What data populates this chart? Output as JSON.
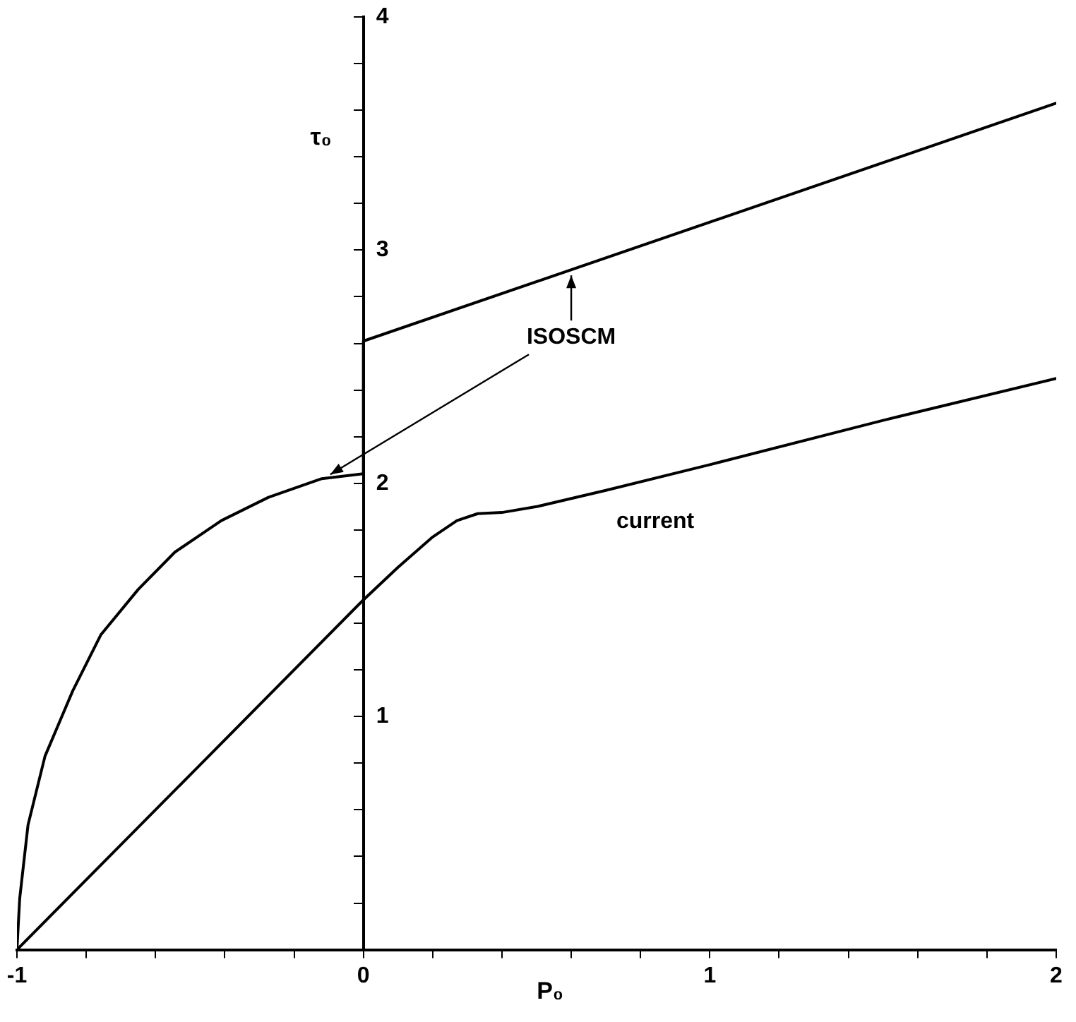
{
  "chart_data": {
    "type": "line",
    "xlabel": "P₀",
    "ylabel": "τ₀",
    "xlim": [
      -1,
      2
    ],
    "ylim": [
      0,
      4
    ],
    "xticks": [
      {
        "value": -1,
        "label": "-1"
      },
      {
        "value": -0.8,
        "label": null
      },
      {
        "value": -0.6,
        "label": null
      },
      {
        "value": -0.4,
        "label": null
      },
      {
        "value": -0.2,
        "label": null
      },
      {
        "value": 0,
        "label": "0"
      },
      {
        "value": 0.2,
        "label": null
      },
      {
        "value": 0.4,
        "label": null
      },
      {
        "value": 0.6,
        "label": null
      },
      {
        "value": 0.8,
        "label": null
      },
      {
        "value": 1,
        "label": "1"
      },
      {
        "value": 1.2,
        "label": null
      },
      {
        "value": 1.4,
        "label": null
      },
      {
        "value": 1.6,
        "label": null
      },
      {
        "value": 1.8,
        "label": null
      },
      {
        "value": 2,
        "label": "2"
      }
    ],
    "yticks": [
      {
        "value": 0,
        "label": null
      },
      {
        "value": 0.2,
        "label": null
      },
      {
        "value": 0.4,
        "label": null
      },
      {
        "value": 0.6,
        "label": null
      },
      {
        "value": 0.8,
        "label": null
      },
      {
        "value": 1,
        "label": "1"
      },
      {
        "value": 1.2,
        "label": null
      },
      {
        "value": 1.4,
        "label": null
      },
      {
        "value": 1.6,
        "label": null
      },
      {
        "value": 1.8,
        "label": null
      },
      {
        "value": 2,
        "label": "2"
      },
      {
        "value": 2.2,
        "label": null
      },
      {
        "value": 2.4,
        "label": null
      },
      {
        "value": 2.6,
        "label": null
      },
      {
        "value": 2.8,
        "label": null
      },
      {
        "value": 3,
        "label": "3"
      },
      {
        "value": 3.2,
        "label": null
      },
      {
        "value": 3.4,
        "label": null
      },
      {
        "value": 3.6,
        "label": null
      },
      {
        "value": 3.8,
        "label": null
      },
      {
        "value": 4,
        "label": "4"
      }
    ],
    "series": [
      {
        "name": "ISOSCM",
        "color": "#000000",
        "x": [
          -1,
          -0.992,
          -0.968,
          -0.919,
          -0.839,
          -0.758,
          -0.65,
          -0.544,
          -0.41,
          -0.274,
          -0.12,
          -0.005,
          0,
          0,
          2
        ],
        "values": [
          0,
          0.22,
          0.535,
          0.83,
          1.11,
          1.35,
          1.545,
          1.705,
          1.84,
          1.94,
          2.02,
          2.04,
          2.04,
          2.61,
          3.63
        ]
      },
      {
        "name": "current",
        "color": "#000000",
        "x": [
          -1,
          -0.5,
          0,
          0.1,
          0.2,
          0.27,
          0.33,
          0.4,
          0.5,
          0.7,
          1,
          1.5,
          2
        ],
        "values": [
          0,
          0.75,
          1.5,
          1.64,
          1.77,
          1.84,
          1.87,
          1.875,
          1.9,
          1.97,
          2.08,
          2.27,
          2.45
        ]
      }
    ]
  }
}
